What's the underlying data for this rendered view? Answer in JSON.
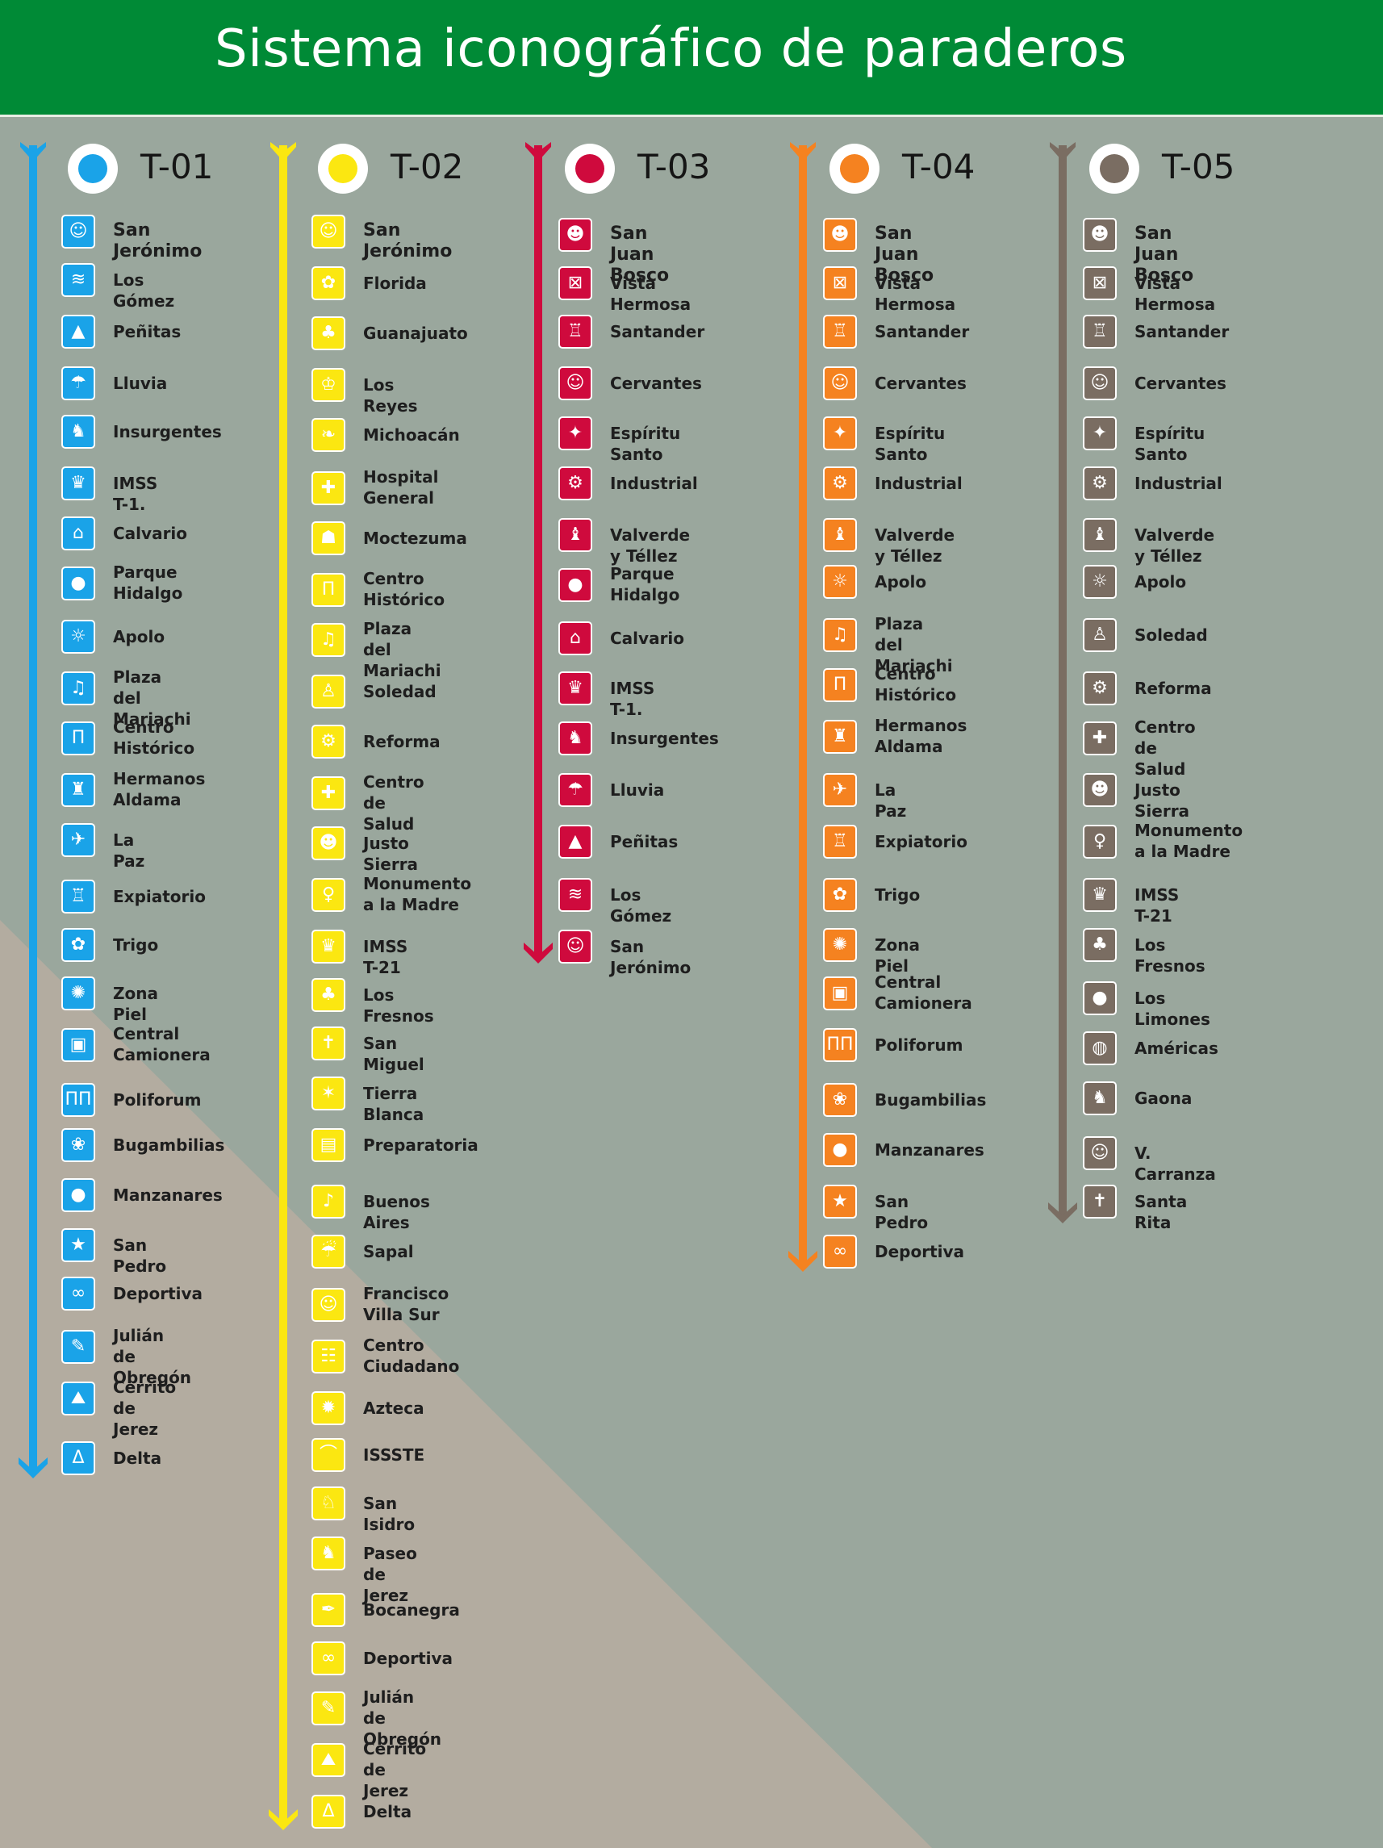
{
  "title": "Sistema iconográfico de paraderos",
  "routes": [
    {
      "code": "T-01",
      "color": "#1aa3e8",
      "stops": [
        {
          "name": "San Jerónimo",
          "icon": "portrait-icon",
          "glyph": "☺"
        },
        {
          "name": "Los Gómez",
          "icon": "dam-icon",
          "glyph": "≋"
        },
        {
          "name": "Peñitas",
          "icon": "rock-icon",
          "glyph": "▲"
        },
        {
          "name": "Lluvia",
          "icon": "rain-cloud-icon",
          "glyph": "☂"
        },
        {
          "name": "Insurgentes",
          "icon": "insurgent-figure-icon",
          "glyph": "♞"
        },
        {
          "name": "IMSS T-1.",
          "icon": "eagle-emblem-icon",
          "glyph": "♛"
        },
        {
          "name": "Calvario",
          "icon": "church-icon",
          "glyph": "⌂"
        },
        {
          "name": "Parque\nHidalgo",
          "icon": "hidalgo-bust-icon",
          "glyph": "●"
        },
        {
          "name": "Apolo",
          "icon": "sun-icon",
          "glyph": "☼"
        },
        {
          "name": "Plaza del\nMariachi",
          "icon": "mariachi-icon",
          "glyph": "♫"
        },
        {
          "name": "Centro\nHistórico",
          "icon": "aqueduct-icon",
          "glyph": "Π"
        },
        {
          "name": "Hermanos\nAldama",
          "icon": "brothers-icon",
          "glyph": "♜"
        },
        {
          "name": "La Paz",
          "icon": "dove-icon",
          "glyph": "✈"
        },
        {
          "name": "Expiatorio",
          "icon": "temple-icon",
          "glyph": "♖"
        },
        {
          "name": "Trigo",
          "icon": "wheat-icon",
          "glyph": "✿"
        },
        {
          "name": "Zona Piel",
          "icon": "leather-icon",
          "glyph": "✺"
        },
        {
          "name": "Central\nCamionera",
          "icon": "bus-icon",
          "glyph": "▣"
        },
        {
          "name": "Poliforum",
          "icon": "poliforum-icon",
          "glyph": "ΠΠ"
        },
        {
          "name": "Bugambilias",
          "icon": "flowers-icon",
          "glyph": "❀"
        },
        {
          "name": "Manzanares",
          "icon": "apples-icon",
          "glyph": "●"
        },
        {
          "name": "San Pedro",
          "icon": "star-icon",
          "glyph": "★"
        },
        {
          "name": "Deportiva",
          "icon": "olympic-rings-icon",
          "glyph": "∞"
        },
        {
          "name": "Julián\nde Obregón",
          "icon": "wrench-icon",
          "glyph": "✎"
        },
        {
          "name": "Cerrito\nde Jerez",
          "icon": "hill-icon",
          "glyph": "⛰"
        },
        {
          "name": "Delta",
          "icon": "delta-icon",
          "glyph": "Δ"
        }
      ]
    },
    {
      "code": "T-02",
      "color": "#fbe711",
      "stops": [
        {
          "name": "San Jerónimo",
          "icon": "portrait-icon",
          "glyph": "☺"
        },
        {
          "name": "Florida",
          "icon": "flower-icon",
          "glyph": "✿"
        },
        {
          "name": "Guanajuato",
          "icon": "frog-icon",
          "glyph": "♣"
        },
        {
          "name": "Los Reyes",
          "icon": "crown-icon",
          "glyph": "♔"
        },
        {
          "name": "Michoacán",
          "icon": "feather-icon",
          "glyph": "❧"
        },
        {
          "name": "Hospital\nGeneral",
          "icon": "hospital-icon",
          "glyph": "✚"
        },
        {
          "name": "Moctezuma",
          "icon": "headdress-icon",
          "glyph": "☗"
        },
        {
          "name": "Centro\nHistórico",
          "icon": "aqueduct-icon",
          "glyph": "Π"
        },
        {
          "name": "Plaza del\nMariachi",
          "icon": "mariachi-icon",
          "glyph": "♫"
        },
        {
          "name": "Soledad",
          "icon": "virgin-icon",
          "glyph": "♙"
        },
        {
          "name": "Reforma",
          "icon": "carriage-icon",
          "glyph": "⚙"
        },
        {
          "name": "Centro\nde Salud",
          "icon": "doctor-icon",
          "glyph": "✚"
        },
        {
          "name": "Justo Sierra",
          "icon": "scholar-icon",
          "glyph": "☻"
        },
        {
          "name": "Monumento\na la Madre",
          "icon": "mother-statue-icon",
          "glyph": "♀"
        },
        {
          "name": "IMSS T-21",
          "icon": "eagle-emblem-icon",
          "glyph": "♛"
        },
        {
          "name": "Los Fresnos",
          "icon": "tree-icon",
          "glyph": "♣"
        },
        {
          "name": "San Miguel",
          "icon": "angel-icon",
          "glyph": "✝"
        },
        {
          "name": "Tierra Blanca",
          "icon": "cactus-icon",
          "glyph": "✶"
        },
        {
          "name": "Preparatoria",
          "icon": "book-icon",
          "glyph": "▤"
        },
        {
          "name": "Buenos Aires",
          "icon": "dancer-icon",
          "glyph": "♪"
        },
        {
          "name": "Sapal",
          "icon": "water-icon",
          "glyph": "☔"
        },
        {
          "name": "Francisco\nVilla Sur",
          "icon": "villa-portrait-icon",
          "glyph": "☺"
        },
        {
          "name": "Centro\nCiudadano",
          "icon": "citizens-icon",
          "glyph": "☷"
        },
        {
          "name": "Azteca",
          "icon": "aztec-calendar-icon",
          "glyph": "✹"
        },
        {
          "name": "ISSSTE",
          "icon": "hands-icon",
          "glyph": "⌒"
        },
        {
          "name": "San Isidro",
          "icon": "farmer-icon",
          "glyph": "♘"
        },
        {
          "name": "Paseo de Jerez",
          "icon": "horse-rider-icon",
          "glyph": "♞"
        },
        {
          "name": "Bocanegra",
          "icon": "quill-icon",
          "glyph": "✒"
        },
        {
          "name": "Deportiva",
          "icon": "olympic-rings-icon",
          "glyph": "∞"
        },
        {
          "name": "Julián\nde Obregón",
          "icon": "wrench-icon",
          "glyph": "✎"
        },
        {
          "name": "Cerrito\nde Jerez",
          "icon": "hill-icon",
          "glyph": "⛰"
        },
        {
          "name": "Delta",
          "icon": "delta-icon",
          "glyph": "Δ"
        }
      ]
    },
    {
      "code": "T-03",
      "color": "#cf0a3d",
      "stops": [
        {
          "name": "San Juan Bosco",
          "icon": "priest-icon",
          "glyph": "☻"
        },
        {
          "name": "Vista Hermosa",
          "icon": "landscape-icon",
          "glyph": "⊠"
        },
        {
          "name": "Santander",
          "icon": "building-icon",
          "glyph": "♖"
        },
        {
          "name": "Cervantes",
          "icon": "cervantes-icon",
          "glyph": "☺"
        },
        {
          "name": "Espíritu Santo",
          "icon": "dove-spirit-icon",
          "glyph": "✦"
        },
        {
          "name": "Industrial",
          "icon": "gear-icon",
          "glyph": "⚙"
        },
        {
          "name": "Valverde y Téllez",
          "icon": "bishop-icon",
          "glyph": "♝"
        },
        {
          "name": "Parque\nHidalgo",
          "icon": "hidalgo-bust-icon",
          "glyph": "●"
        },
        {
          "name": "Calvario",
          "icon": "church-icon",
          "glyph": "⌂"
        },
        {
          "name": "IMSS T-1.",
          "icon": "eagle-emblem-icon",
          "glyph": "♛"
        },
        {
          "name": "Insurgentes",
          "icon": "insurgent-figure-icon",
          "glyph": "♞"
        },
        {
          "name": "Lluvia",
          "icon": "rain-cloud-icon",
          "glyph": "☂"
        },
        {
          "name": "Peñitas",
          "icon": "rock-icon",
          "glyph": "▲"
        },
        {
          "name": "Los Gómez",
          "icon": "dam-icon",
          "glyph": "≋"
        },
        {
          "name": "San Jerónimo",
          "icon": "portrait-icon",
          "glyph": "☺"
        }
      ]
    },
    {
      "code": "T-04",
      "color": "#f58220",
      "stops": [
        {
          "name": "San Juan Bosco",
          "icon": "priest-icon",
          "glyph": "☻"
        },
        {
          "name": "Vista Hermosa",
          "icon": "landscape-icon",
          "glyph": "⊠"
        },
        {
          "name": "Santander",
          "icon": "building-icon",
          "glyph": "♖"
        },
        {
          "name": "Cervantes",
          "icon": "cervantes-icon",
          "glyph": "☺"
        },
        {
          "name": "Espíritu Santo",
          "icon": "dove-spirit-icon",
          "glyph": "✦"
        },
        {
          "name": "Industrial",
          "icon": "gear-icon",
          "glyph": "⚙"
        },
        {
          "name": "Valverde y Téllez",
          "icon": "bishop-icon",
          "glyph": "♝"
        },
        {
          "name": "Apolo",
          "icon": "sun-icon",
          "glyph": "☼"
        },
        {
          "name": "Plaza del\nMariachi",
          "icon": "mariachi-icon",
          "glyph": "♫"
        },
        {
          "name": "Centro\nHistórico",
          "icon": "aqueduct-icon",
          "glyph": "Π"
        },
        {
          "name": "Hermanos\nAldama",
          "icon": "brothers-icon",
          "glyph": "♜"
        },
        {
          "name": "La Paz",
          "icon": "dove-icon",
          "glyph": "✈"
        },
        {
          "name": "Expiatorio",
          "icon": "temple-icon",
          "glyph": "♖"
        },
        {
          "name": "Trigo",
          "icon": "wheat-icon",
          "glyph": "✿"
        },
        {
          "name": "Zona Piel",
          "icon": "leather-icon",
          "glyph": "✺"
        },
        {
          "name": "Central\nCamionera",
          "icon": "bus-icon",
          "glyph": "▣"
        },
        {
          "name": "Poliforum",
          "icon": "poliforum-icon",
          "glyph": "ΠΠ"
        },
        {
          "name": "Bugambilias",
          "icon": "flowers-icon",
          "glyph": "❀"
        },
        {
          "name": "Manzanares",
          "icon": "apples-icon",
          "glyph": "●"
        },
        {
          "name": "San Pedro",
          "icon": "star-icon",
          "glyph": "★"
        },
        {
          "name": "Deportiva",
          "icon": "olympic-rings-icon",
          "glyph": "∞"
        }
      ]
    },
    {
      "code": "T-05",
      "color": "#7a6d62",
      "stops": [
        {
          "name": "San Juan Bosco",
          "icon": "priest-icon",
          "glyph": "☻"
        },
        {
          "name": "Vista Hermosa",
          "icon": "landscape-icon",
          "glyph": "⊠"
        },
        {
          "name": "Santander",
          "icon": "building-icon",
          "glyph": "♖"
        },
        {
          "name": "Cervantes",
          "icon": "cervantes-icon",
          "glyph": "☺"
        },
        {
          "name": "Espíritu Santo",
          "icon": "dove-spirit-icon",
          "glyph": "✦"
        },
        {
          "name": "Industrial",
          "icon": "gear-icon",
          "glyph": "⚙"
        },
        {
          "name": "Valverde y Téllez",
          "icon": "bishop-icon",
          "glyph": "♝"
        },
        {
          "name": "Apolo",
          "icon": "sun-icon",
          "glyph": "☼"
        },
        {
          "name": "Soledad",
          "icon": "virgin-icon",
          "glyph": "♙"
        },
        {
          "name": "Reforma",
          "icon": "carriage-icon",
          "glyph": "⚙"
        },
        {
          "name": "Centro\nde Salud",
          "icon": "doctor-icon",
          "glyph": "✚"
        },
        {
          "name": "Justo Sierra",
          "icon": "scholar-icon",
          "glyph": "☻"
        },
        {
          "name": "Monumento\na la Madre",
          "icon": "mother-statue-icon",
          "glyph": "♀"
        },
        {
          "name": "IMSS T-21",
          "icon": "eagle-emblem-icon",
          "glyph": "♛"
        },
        {
          "name": "Los Fresnos",
          "icon": "tree-icon",
          "glyph": "♣"
        },
        {
          "name": "Los Limones",
          "icon": "lemons-icon",
          "glyph": "●"
        },
        {
          "name": "Américas",
          "icon": "globe-icon",
          "glyph": "◍"
        },
        {
          "name": "Gaona",
          "icon": "bullfighter-icon",
          "glyph": "♞"
        },
        {
          "name": "V. Carranza",
          "icon": "carranza-portrait-icon",
          "glyph": "☺"
        },
        {
          "name": "Santa Rita",
          "icon": "saint-icon",
          "glyph": "✝"
        }
      ]
    }
  ]
}
